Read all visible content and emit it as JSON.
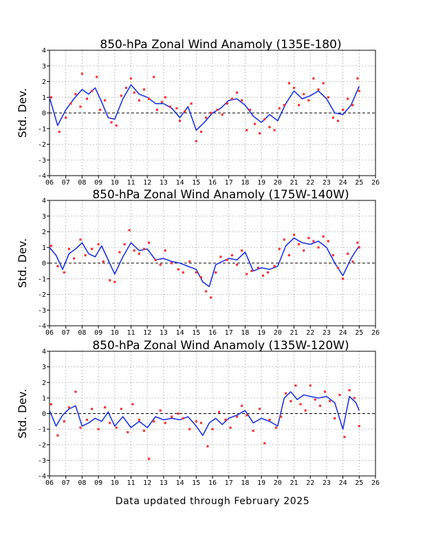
{
  "footer": "Data updated through February 2025",
  "colors": {
    "line": "#1a33e6",
    "dots": "#ff3333",
    "grid": "#9a9a9a",
    "zero": "#000000"
  },
  "chart_data": [
    {
      "type": "line",
      "title": "850-hPa Zonal Wind Anamoly (135E-180)",
      "ylabel": "Std. Dev.",
      "ylim": [
        -4,
        4
      ],
      "xlim": [
        6,
        26
      ],
      "grid": true,
      "yticks": [
        "4",
        "3",
        "2",
        "1",
        "0",
        "-1",
        "-2",
        "-3",
        "-4"
      ],
      "xticks": [
        "06",
        "07",
        "08",
        "09",
        "10",
        "11",
        "12",
        "13",
        "14",
        "15",
        "16",
        "17",
        "18",
        "19",
        "20",
        "21",
        "22",
        "23",
        "24",
        "25",
        "26"
      ],
      "series": [
        {
          "kind": "line",
          "x": [
            6.0,
            6.5,
            7.0,
            7.5,
            8.0,
            8.4,
            8.8,
            9.2,
            9.6,
            10.0,
            10.5,
            11.0,
            11.5,
            12.0,
            12.5,
            13.0,
            13.5,
            14.0,
            14.5,
            15.0,
            15.5,
            16.0,
            16.5,
            17.0,
            17.5,
            18.0,
            18.5,
            19.0,
            19.5,
            20.0,
            20.5,
            21.0,
            21.5,
            22.0,
            22.5,
            23.0,
            23.5,
            24.0,
            24.5,
            25.0
          ],
          "y": [
            1.0,
            -0.8,
            0.2,
            0.9,
            1.5,
            1.2,
            1.6,
            0.7,
            -0.3,
            -0.4,
            0.9,
            1.8,
            1.2,
            1.0,
            0.6,
            0.6,
            0.3,
            -0.3,
            0.4,
            -1.1,
            -0.6,
            0.0,
            0.3,
            0.8,
            0.9,
            0.5,
            -0.2,
            -0.6,
            -0.1,
            -0.5,
            0.6,
            1.4,
            0.9,
            1.1,
            1.4,
            0.9,
            0.0,
            -0.1,
            0.5,
            1.7
          ]
        },
        {
          "kind": "points",
          "x": [
            6.1,
            6.6,
            7.0,
            7.3,
            7.6,
            7.9,
            8.0,
            8.3,
            8.6,
            8.9,
            9.1,
            9.4,
            9.8,
            10.1,
            10.4,
            10.7,
            11.0,
            11.2,
            11.5,
            11.8,
            12.1,
            12.4,
            12.6,
            12.9,
            13.1,
            13.4,
            13.8,
            14.0,
            14.3,
            14.7,
            15.0,
            15.3,
            15.6,
            15.9,
            16.3,
            16.6,
            16.9,
            17.2,
            17.5,
            17.8,
            18.1,
            18.3,
            18.6,
            18.9,
            19.2,
            19.5,
            19.8,
            20.1,
            20.4,
            20.7,
            21.0,
            21.3,
            21.6,
            21.9,
            22.2,
            22.5,
            22.8,
            23.1,
            23.4,
            23.7,
            24.0,
            24.3,
            24.6,
            24.9,
            25.0
          ],
          "y": [
            1.0,
            -1.2,
            -0.3,
            0.6,
            1.2,
            0.4,
            2.5,
            0.9,
            1.4,
            2.3,
            0.2,
            0.8,
            -0.6,
            -0.8,
            1.1,
            1.6,
            2.2,
            1.3,
            0.8,
            1.5,
            0.9,
            2.3,
            0.2,
            0.7,
            1.0,
            0.4,
            0.3,
            -0.5,
            0.1,
            0.6,
            -1.8,
            -1.2,
            -0.3,
            0.0,
            0.2,
            -0.1,
            0.6,
            0.9,
            1.3,
            0.8,
            -1.1,
            0.2,
            -0.7,
            -1.3,
            -0.4,
            -0.9,
            -1.1,
            0.3,
            0.5,
            1.9,
            1.6,
            0.5,
            1.2,
            0.8,
            2.2,
            1.5,
            1.9,
            1.0,
            -0.3,
            -0.5,
            0.2,
            0.9,
            0.5,
            2.2,
            1.4
          ]
        }
      ]
    },
    {
      "type": "line",
      "title": "850-hPa Zonal Wind Anamoly (175W-140W)",
      "ylabel": "Std. Dev.",
      "ylim": [
        -4,
        4
      ],
      "xlim": [
        6,
        26
      ],
      "grid": true,
      "yticks": [
        "4",
        "3",
        "2",
        "1",
        "0",
        "-1",
        "-2",
        "-3",
        "-4"
      ],
      "xticks": [
        "06",
        "07",
        "08",
        "09",
        "10",
        "11",
        "12",
        "13",
        "14",
        "15",
        "16",
        "17",
        "18",
        "19",
        "20",
        "21",
        "22",
        "23",
        "24",
        "25",
        "26"
      ],
      "series": [
        {
          "kind": "line",
          "x": [
            6.0,
            6.4,
            6.8,
            7.2,
            7.6,
            8.0,
            8.4,
            8.8,
            9.2,
            9.6,
            10.0,
            10.5,
            11.0,
            11.5,
            12.0,
            12.5,
            13.0,
            13.5,
            14.0,
            14.5,
            15.0,
            15.4,
            15.8,
            16.2,
            16.6,
            17.0,
            17.5,
            18.0,
            18.5,
            19.0,
            19.5,
            20.0,
            20.5,
            21.0,
            21.5,
            22.0,
            22.5,
            23.0,
            23.5,
            24.0,
            24.5,
            25.0
          ],
          "y": [
            1.0,
            0.5,
            -0.4,
            0.6,
            0.9,
            1.3,
            0.6,
            0.4,
            1.1,
            0.2,
            -0.7,
            0.4,
            1.3,
            0.8,
            0.9,
            0.2,
            0.3,
            0.1,
            0.0,
            -0.2,
            -0.4,
            -1.2,
            -1.5,
            -0.1,
            0.1,
            0.3,
            0.2,
            0.7,
            -0.5,
            -0.3,
            -0.4,
            -0.2,
            1.1,
            1.6,
            1.3,
            1.2,
            1.4,
            1.0,
            0.0,
            -0.8,
            0.3,
            1.1
          ]
        },
        {
          "kind": "points",
          "x": [
            6.1,
            6.5,
            6.9,
            7.2,
            7.5,
            7.9,
            8.2,
            8.6,
            9.0,
            9.3,
            9.7,
            10.0,
            10.3,
            10.6,
            10.9,
            11.2,
            11.5,
            11.8,
            12.1,
            12.5,
            12.8,
            13.1,
            13.5,
            13.9,
            14.2,
            14.6,
            15.0,
            15.3,
            15.6,
            15.9,
            16.2,
            16.5,
            16.9,
            17.2,
            17.5,
            17.8,
            18.1,
            18.4,
            18.8,
            19.1,
            19.4,
            19.8,
            20.1,
            20.4,
            20.7,
            21.0,
            21.3,
            21.6,
            21.9,
            22.2,
            22.5,
            22.8,
            23.1,
            23.4,
            23.7,
            24.0,
            24.3,
            24.6,
            24.9,
            25.0
          ],
          "y": [
            1.1,
            -0.2,
            -0.6,
            0.9,
            0.3,
            1.5,
            0.5,
            0.9,
            1.2,
            0.1,
            -1.1,
            -1.2,
            0.7,
            1.2,
            2.1,
            0.8,
            0.6,
            0.9,
            1.3,
            0.2,
            -0.1,
            0.8,
            0.0,
            -0.4,
            -0.6,
            0.1,
            -0.6,
            -0.9,
            -1.8,
            -2.2,
            -0.6,
            0.4,
            0.2,
            0.5,
            -0.1,
            0.8,
            -0.7,
            -0.5,
            -0.3,
            -0.8,
            -0.6,
            -0.2,
            0.9,
            1.5,
            0.5,
            1.8,
            1.2,
            0.8,
            1.6,
            1.4,
            1.0,
            1.7,
            1.4,
            0.5,
            -0.3,
            -1.0,
            0.6,
            0.1,
            1.3,
            1.0
          ]
        }
      ]
    },
    {
      "type": "line",
      "title": "850-hPa Zonal Wind Anamoly (135W-120W)",
      "ylabel": "Std. Dev.",
      "ylim": [
        -4,
        4
      ],
      "xlim": [
        6,
        26
      ],
      "grid": true,
      "yticks": [
        "4",
        "3",
        "2",
        "1",
        "0",
        "-1",
        "-2",
        "-3",
        "-4"
      ],
      "xticks": [
        "06",
        "07",
        "08",
        "09",
        "10",
        "11",
        "12",
        "13",
        "14",
        "15",
        "16",
        "17",
        "18",
        "19",
        "20",
        "21",
        "22",
        "23",
        "24",
        "25",
        "26"
      ],
      "series": [
        {
          "kind": "line",
          "x": [
            6.0,
            6.4,
            6.8,
            7.2,
            7.6,
            8.0,
            8.4,
            8.8,
            9.2,
            9.6,
            10.0,
            10.5,
            11.0,
            11.5,
            12.0,
            12.5,
            13.0,
            13.5,
            14.0,
            14.5,
            15.0,
            15.4,
            15.8,
            16.2,
            16.6,
            17.0,
            17.5,
            18.0,
            18.5,
            19.0,
            19.5,
            20.0,
            20.4,
            20.8,
            21.2,
            21.6,
            22.0,
            22.5,
            23.0,
            23.5,
            24.0,
            24.4,
            24.8,
            25.0
          ],
          "y": [
            0.2,
            -0.8,
            -0.1,
            0.3,
            0.5,
            -0.8,
            -0.6,
            -0.3,
            -0.5,
            0.1,
            -0.8,
            -0.2,
            -0.9,
            -0.5,
            -0.9,
            -0.2,
            -0.4,
            -0.3,
            -0.4,
            -0.2,
            -0.8,
            -1.4,
            -0.6,
            -0.3,
            -0.7,
            -0.3,
            -0.1,
            0.2,
            -0.6,
            -0.3,
            -0.5,
            -0.8,
            1.0,
            1.4,
            0.9,
            1.2,
            1.1,
            1.0,
            1.1,
            0.7,
            -1.0,
            1.1,
            0.7,
            0.2
          ]
        },
        {
          "kind": "points",
          "x": [
            6.1,
            6.5,
            6.9,
            7.2,
            7.6,
            7.9,
            8.3,
            8.6,
            9.0,
            9.4,
            9.7,
            10.1,
            10.4,
            10.8,
            11.1,
            11.5,
            11.8,
            12.1,
            12.4,
            12.8,
            13.1,
            13.5,
            13.9,
            14.2,
            14.6,
            15.0,
            15.3,
            15.7,
            16.0,
            16.4,
            16.8,
            17.1,
            17.5,
            17.8,
            18.1,
            18.5,
            18.9,
            19.2,
            19.5,
            19.9,
            20.2,
            20.5,
            20.8,
            21.1,
            21.4,
            21.7,
            22.0,
            22.3,
            22.6,
            22.9,
            23.2,
            23.5,
            23.8,
            24.1,
            24.4,
            24.7,
            25.0
          ],
          "y": [
            0.6,
            -1.4,
            -0.5,
            0.4,
            1.4,
            -0.9,
            -0.4,
            0.3,
            -1.0,
            0.4,
            -0.6,
            -0.9,
            0.3,
            -1.2,
            0.6,
            -0.4,
            -1.1,
            -2.9,
            -0.5,
            0.2,
            -0.6,
            -0.2,
            0.0,
            -0.3,
            -1.0,
            -0.5,
            -0.6,
            -2.1,
            -1.0,
            0.1,
            -0.4,
            -0.9,
            -0.2,
            0.5,
            -0.1,
            -1.1,
            0.3,
            -1.9,
            -0.4,
            -0.9,
            -0.2,
            1.3,
            0.8,
            1.8,
            0.6,
            0.2,
            1.8,
            0.9,
            0.5,
            1.4,
            0.8,
            -0.3,
            1.2,
            -1.5,
            1.5,
            1.0,
            -0.8
          ]
        }
      ]
    }
  ]
}
